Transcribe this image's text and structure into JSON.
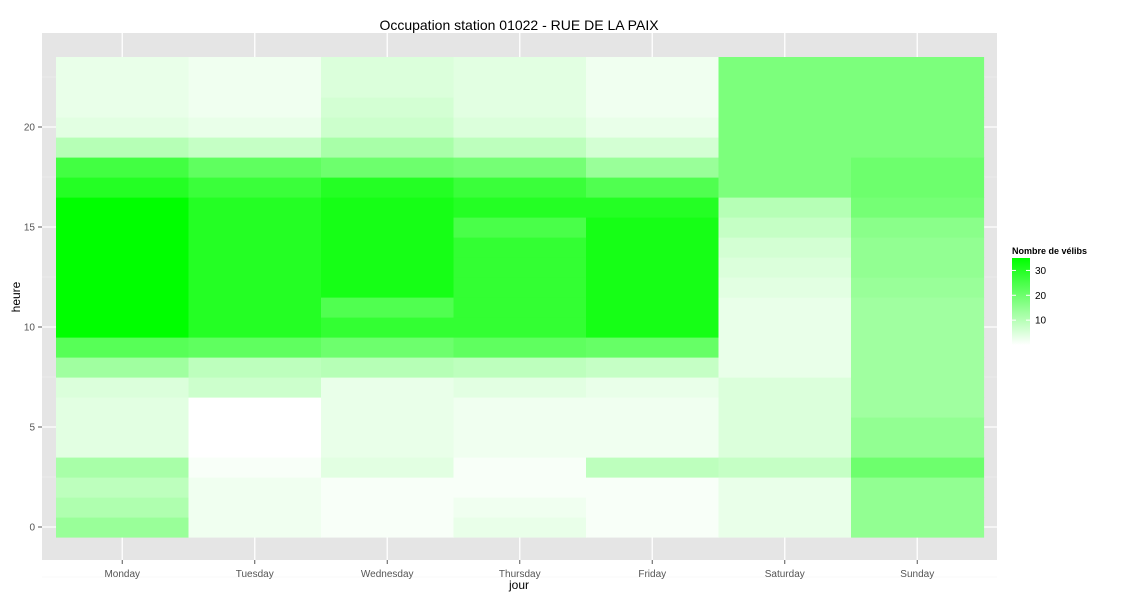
{
  "chart_data": {
    "type": "heatmap",
    "title": "Occupation station 01022 - RUE DE LA PAIX",
    "xlabel": "jour",
    "ylabel": "heure",
    "x_categories": [
      "Monday",
      "Tuesday",
      "Wednesday",
      "Thursday",
      "Friday",
      "Saturday",
      "Sunday"
    ],
    "y_hours": [
      0,
      1,
      2,
      3,
      4,
      5,
      6,
      7,
      8,
      9,
      10,
      11,
      12,
      13,
      14,
      15,
      16,
      17,
      18,
      19,
      20,
      21,
      22,
      23
    ],
    "y_ticks": [
      0,
      5,
      10,
      15,
      20
    ],
    "values": {
      "Monday": [
        14,
        11,
        9,
        12,
        4,
        4,
        4,
        5,
        13,
        23,
        35,
        35,
        35,
        35,
        35,
        35,
        35,
        30,
        26,
        10,
        4,
        3,
        3,
        3
      ],
      "Tuesday": [
        2,
        2,
        2,
        1,
        0,
        0,
        0,
        7,
        9,
        22,
        30,
        30,
        30,
        30,
        30,
        30,
        30,
        27,
        22,
        8,
        3,
        2,
        2,
        2
      ],
      "Wednesday": [
        1,
        1,
        1,
        4,
        3,
        3,
        3,
        3,
        10,
        20,
        28,
        24,
        32,
        32,
        32,
        32,
        32,
        30,
        20,
        12,
        7,
        6,
        5,
        5
      ],
      "Thursday": [
        3,
        2,
        1,
        1,
        2,
        2,
        2,
        4,
        9,
        22,
        28,
        28,
        28,
        28,
        28,
        25,
        30,
        27,
        19,
        9,
        5,
        4,
        4,
        4
      ],
      "Friday": [
        1,
        1,
        1,
        9,
        2,
        2,
        2,
        3,
        8,
        21,
        32,
        32,
        32,
        32,
        32,
        32,
        30,
        24,
        14,
        6,
        3,
        2,
        2,
        2
      ],
      "Saturday": [
        3,
        3,
        3,
        8,
        5,
        5,
        5,
        5,
        3,
        3,
        3,
        3,
        4,
        5,
        6,
        8,
        10,
        18,
        18,
        18,
        18,
        18,
        18,
        18
      ],
      "Sunday": [
        15,
        15,
        15,
        20,
        15,
        15,
        13,
        13,
        13,
        13,
        13,
        13,
        14,
        15,
        15,
        16,
        19,
        20,
        20,
        18,
        18,
        18,
        18,
        18
      ]
    },
    "legend": {
      "title": "Nombre de vélibs",
      "ticks": [
        10,
        20,
        30
      ],
      "range": [
        0,
        35
      ],
      "color_low": "#ffffff",
      "color_high": "#00ff00",
      "placement": "right"
    },
    "grid": true
  }
}
